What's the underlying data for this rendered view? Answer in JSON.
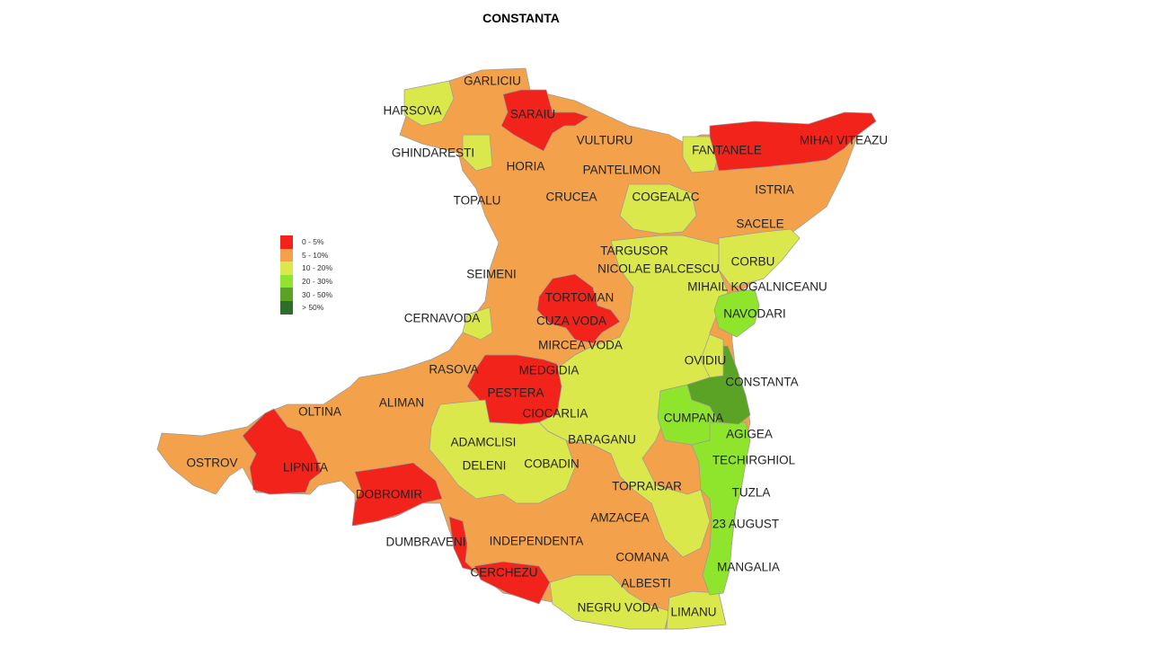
{
  "title": "CONSTANTA",
  "colors": {
    "red": "#f2231b",
    "orange": "#f3a24b",
    "yellow": "#dbe84c",
    "lightgreen": "#8ee52c",
    "green": "#5aa324",
    "darkgreen": "#2f6e2a"
  },
  "legend": [
    {
      "label": "0 - 5%",
      "color": "#f2231b"
    },
    {
      "label": "5 - 10%",
      "color": "#f3a24b"
    },
    {
      "label": "10 - 20%",
      "color": "#dbe84c"
    },
    {
      "label": "20 - 30%",
      "color": "#8ee52c"
    },
    {
      "label": "30 - 50%",
      "color": "#5aa324"
    },
    {
      "label": "> 50%",
      "color": "#2f6e2a"
    }
  ],
  "regions": [
    {
      "name": "GARLICIU",
      "class": "5 - 10%"
    },
    {
      "name": "HARSOVA",
      "class": "10 - 20%"
    },
    {
      "name": "SARAIU",
      "class": "0 - 5%"
    },
    {
      "name": "VULTURU",
      "class": "5 - 10%"
    },
    {
      "name": "GHINDARESTI",
      "class": "10 - 20%"
    },
    {
      "name": "HORIA",
      "class": "5 - 10%"
    },
    {
      "name": "PANTELIMON",
      "class": "5 - 10%"
    },
    {
      "name": "FANTANELE",
      "class": "10 - 20%"
    },
    {
      "name": "MIHAI VITEAZU",
      "class": "0 - 5%"
    },
    {
      "name": "TOPALU",
      "class": "5 - 10%"
    },
    {
      "name": "CRUCEA",
      "class": "5 - 10%"
    },
    {
      "name": "COGEALAC",
      "class": "10 - 20%"
    },
    {
      "name": "ISTRIA",
      "class": "5 - 10%"
    },
    {
      "name": "SACELE",
      "class": "5 - 10%"
    },
    {
      "name": "TARGUSOR",
      "class": "5 - 10%"
    },
    {
      "name": "CORBU",
      "class": "10 - 20%"
    },
    {
      "name": "SEIMENI",
      "class": "5 - 10%"
    },
    {
      "name": "NICOLAE BALCESCU",
      "class": "10 - 20%"
    },
    {
      "name": "MIHAIL KOGALNICEANU",
      "class": "10 - 20%"
    },
    {
      "name": "TORTOMAN",
      "class": "0 - 5%"
    },
    {
      "name": "NAVODARI",
      "class": "20 - 30%"
    },
    {
      "name": "CERNAVODA",
      "class": "10 - 20%"
    },
    {
      "name": "CUZA VODA",
      "class": "0 - 5%"
    },
    {
      "name": "MIRCEA VODA",
      "class": "10 - 20%"
    },
    {
      "name": "OVIDIU",
      "class": "10 - 20%"
    },
    {
      "name": "RASOVA",
      "class": "5 - 10%"
    },
    {
      "name": "MEDGIDIA",
      "class": "0 - 5%"
    },
    {
      "name": "CONSTANTA",
      "class": "30 - 50%"
    },
    {
      "name": "PESTERA",
      "class": "0 - 5%"
    },
    {
      "name": "ALIMAN",
      "class": "5 - 10%"
    },
    {
      "name": "OLTINA",
      "class": "5 - 10%"
    },
    {
      "name": "CIOCARLIA",
      "class": "10 - 20%"
    },
    {
      "name": "CUMPANA",
      "class": "20 - 30%"
    },
    {
      "name": "AGIGEA",
      "class": "20 - 30%"
    },
    {
      "name": "ADAMCLISI",
      "class": "10 - 20%"
    },
    {
      "name": "BARAGANU",
      "class": "10 - 20%"
    },
    {
      "name": "OSTROV",
      "class": "5 - 10%"
    },
    {
      "name": "LIPNITA",
      "class": "0 - 5%"
    },
    {
      "name": "DELENI",
      "class": "10 - 20%"
    },
    {
      "name": "COBADIN",
      "class": "10 - 20%"
    },
    {
      "name": "TECHIRGHIOL",
      "class": "20 - 30%"
    },
    {
      "name": "DOBROMIR",
      "class": "0 - 5%"
    },
    {
      "name": "TOPRAISAR",
      "class": "10 - 20%"
    },
    {
      "name": "TUZLA",
      "class": "20 - 30%"
    },
    {
      "name": "AMZACEA",
      "class": "5 - 10%"
    },
    {
      "name": "23 AUGUST",
      "class": "10 - 20%"
    },
    {
      "name": "DUMBRAVENI",
      "class": "0 - 5%"
    },
    {
      "name": "INDEPENDENTA",
      "class": "5 - 10%"
    },
    {
      "name": "COMANA",
      "class": "5 - 10%"
    },
    {
      "name": "MANGALIA",
      "class": "20 - 30%"
    },
    {
      "name": "CERCHEZU",
      "class": "0 - 5%"
    },
    {
      "name": "ALBESTI",
      "class": "5 - 10%"
    },
    {
      "name": "NEGRU VODA",
      "class": "10 - 20%"
    },
    {
      "name": "LIMANU",
      "class": "10 - 20%"
    }
  ]
}
